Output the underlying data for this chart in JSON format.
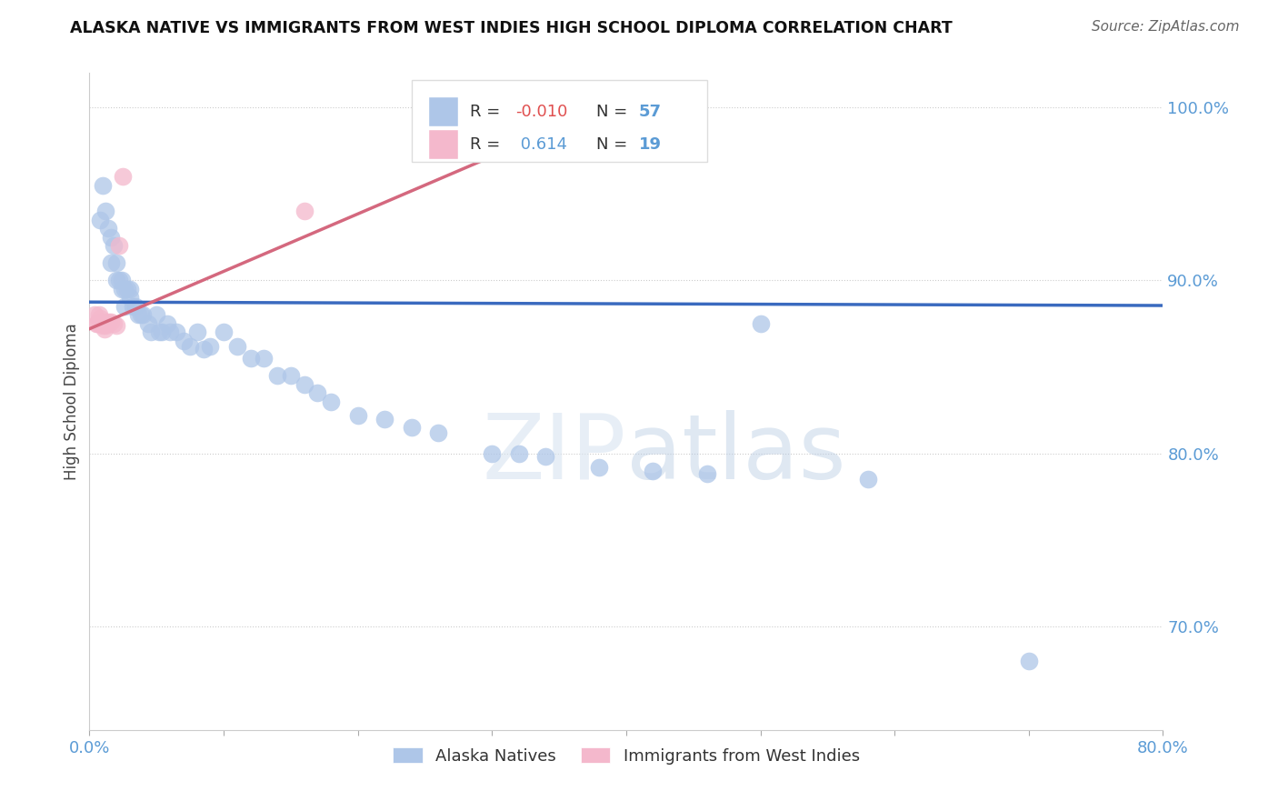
{
  "title": "ALASKA NATIVE VS IMMIGRANTS FROM WEST INDIES HIGH SCHOOL DIPLOMA CORRELATION CHART",
  "source": "Source: ZipAtlas.com",
  "ylabel": "High School Diploma",
  "r_blue": -0.01,
  "n_blue": 57,
  "r_pink": 0.614,
  "n_pink": 19,
  "watermark_zip": "ZIP",
  "watermark_atlas": "atlas",
  "blue_color": "#aec6e8",
  "pink_color": "#f4b8cc",
  "blue_line_color": "#3a6abf",
  "pink_line_color": "#d4687e",
  "legend_blue_label": "Alaska Natives",
  "legend_pink_label": "Immigrants from West Indies",
  "blue_scatter_x": [
    0.008,
    0.01,
    0.012,
    0.014,
    0.016,
    0.016,
    0.018,
    0.02,
    0.02,
    0.022,
    0.024,
    0.024,
    0.026,
    0.026,
    0.028,
    0.03,
    0.03,
    0.032,
    0.034,
    0.036,
    0.038,
    0.04,
    0.044,
    0.046,
    0.05,
    0.052,
    0.054,
    0.058,
    0.06,
    0.065,
    0.07,
    0.075,
    0.08,
    0.085,
    0.09,
    0.1,
    0.11,
    0.12,
    0.13,
    0.14,
    0.15,
    0.16,
    0.17,
    0.18,
    0.2,
    0.22,
    0.24,
    0.26,
    0.3,
    0.32,
    0.34,
    0.38,
    0.42,
    0.46,
    0.5,
    0.58,
    0.7
  ],
  "blue_scatter_y": [
    0.935,
    0.955,
    0.94,
    0.93,
    0.925,
    0.91,
    0.92,
    0.91,
    0.9,
    0.9,
    0.895,
    0.9,
    0.895,
    0.885,
    0.895,
    0.895,
    0.89,
    0.885,
    0.885,
    0.88,
    0.88,
    0.88,
    0.875,
    0.87,
    0.88,
    0.87,
    0.87,
    0.875,
    0.87,
    0.87,
    0.865,
    0.862,
    0.87,
    0.86,
    0.862,
    0.87,
    0.862,
    0.855,
    0.855,
    0.845,
    0.845,
    0.84,
    0.835,
    0.83,
    0.822,
    0.82,
    0.815,
    0.812,
    0.8,
    0.8,
    0.798,
    0.792,
    0.79,
    0.788,
    0.875,
    0.785,
    0.68
  ],
  "pink_scatter_x": [
    0.004,
    0.005,
    0.006,
    0.007,
    0.008,
    0.008,
    0.009,
    0.01,
    0.01,
    0.011,
    0.012,
    0.013,
    0.014,
    0.016,
    0.018,
    0.02,
    0.022,
    0.025,
    0.16
  ],
  "pink_scatter_y": [
    0.88,
    0.875,
    0.875,
    0.88,
    0.878,
    0.875,
    0.876,
    0.875,
    0.874,
    0.872,
    0.874,
    0.875,
    0.876,
    0.876,
    0.875,
    0.874,
    0.92,
    0.96,
    0.94
  ],
  "xmin": 0.0,
  "xmax": 0.8,
  "ymin": 0.64,
  "ymax": 1.02,
  "yticks": [
    0.7,
    0.8,
    0.9,
    1.0
  ],
  "ytick_labels": [
    "70.0%",
    "80.0%",
    "90.0%",
    "100.0%"
  ],
  "blue_line_x": [
    0.0,
    0.8
  ],
  "blue_line_y": [
    0.8875,
    0.8855
  ],
  "pink_line_x": [
    0.0,
    0.4
  ],
  "pink_line_y": [
    0.872,
    1.005
  ]
}
